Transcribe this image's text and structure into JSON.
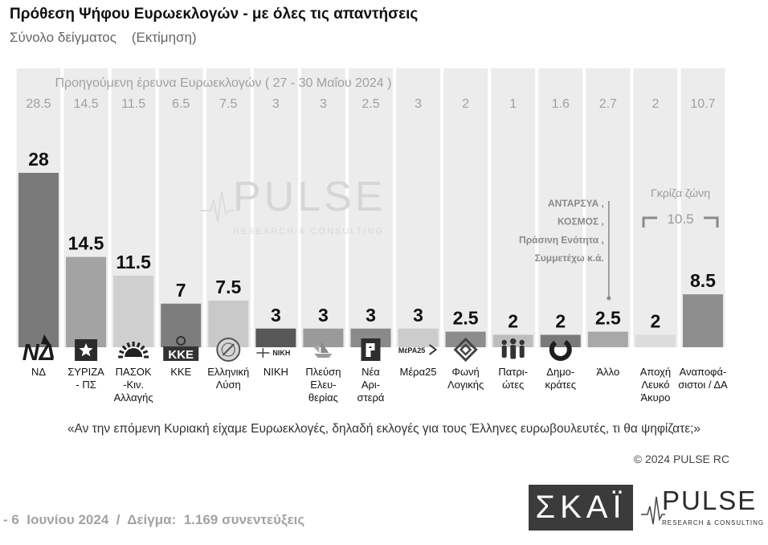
{
  "chart_data": {
    "type": "bar",
    "title": "Πρόθεση Ψήφου Ευρωεκλογών - με όλες τις απαντήσεις",
    "subtitle": "Σύνολο δείγματος    (Εκτίμηση)",
    "categories": [
      "ΝΔ",
      "ΣΥΡΙΖΑ\n- ΠΣ",
      "ΠΑΣΟΚ\n-Κιν.\nΑλλαγής",
      "ΚΚΕ",
      "Ελληνική\nΛύση",
      "ΝΙΚΗ",
      "Πλεύση\nΕλευ-\nθερίας",
      "Νέα\nΑρι-\nστερά",
      "Μέρα25",
      "Φωνή\nΛογικής",
      "Πατρι-\nώτες",
      "Δημο-\nκράτες",
      "Άλλο",
      "Αποχή\nΛευκό\nΆκυρο",
      "Αναποφά-\nσιστοι / ΔΑ"
    ],
    "values": [
      28,
      14.5,
      11.5,
      7,
      7.5,
      3,
      3,
      3,
      3,
      2.5,
      2,
      2,
      2.5,
      2,
      8.5
    ],
    "previous_label": "Προηγούμενη έρευνα Ευρωεκλογών ( 27 - 30 Μαΐου 2024 )",
    "previous_values": [
      28.5,
      14.5,
      11.5,
      6.5,
      7.5,
      3,
      3,
      2.5,
      3,
      2,
      1,
      1.6,
      2.7,
      2,
      10.7
    ],
    "question": "«Αν την επόμενη Κυριακή είχαμε Ευρωεκλογές, δηλαδή εκλογές για τους Έλληνες ευρωβουλευτές, τι θα ψηφίζατε;»",
    "grey_zone": {
      "label": "Γκρίζα ζώνη",
      "value": 10.5
    },
    "annotation": {
      "lines": [
        "ΑΝΤΑΡΣΥΑ ,",
        "ΚΟΣΜΟΣ ,",
        "Πράσινη Ενότητα ,",
        "Συμμετέχω  κ.ά."
      ]
    },
    "logos": [
      {
        "icon": "nd-logo",
        "text": "ΝΔ"
      },
      {
        "icon": "syriza-logo"
      },
      {
        "icon": "pasok-logo"
      },
      {
        "icon": "kke-logo",
        "text": "ΚΚΕ"
      },
      {
        "icon": "elliniki-lysi-logo"
      },
      {
        "icon": "niki-logo",
        "text": "ΝΙΚΗ"
      },
      {
        "icon": "plefsi-eleftherias-logo"
      },
      {
        "icon": "nea-aristera-logo"
      },
      {
        "icon": "mera25-logo",
        "text": "ΜέΡΑ25"
      },
      {
        "icon": "foni-logikis-logo"
      },
      {
        "icon": "patriotes-logo"
      },
      {
        "icon": "dimokrates-logo"
      },
      null,
      null,
      null
    ],
    "bar_colors": [
      "#7a7a7a",
      "#a3a3a3",
      "#cfcfcf",
      "#7d7d7d",
      "#c9c9c9",
      "#575757",
      "#9a9a9a",
      "#8a8a8a",
      "#cccccc",
      "#8c8c8c",
      "#bdbdbd",
      "#7a7a7a",
      "#a8a8a8",
      "#dcdcdc",
      "#8e8e8e"
    ],
    "grid": false
  },
  "footer": {
    "copyright": "© 2024 PULSE RC",
    "fieldwork": "- 6  Ιουνίου 2024  /  Δείγμα:  1.169 συνεντεύξεις"
  },
  "brand_logos": {
    "skai": "ΣΚΑΪ",
    "pulse": "PULSE",
    "pulse_tagline": "RESEARCH & CONSULTING"
  },
  "watermark": {
    "text": "PULSE",
    "tagline": "RESEARCH & CONSULTING"
  },
  "colors": {
    "background": "#ffffff",
    "band": "#ececec",
    "annotation": "#8a8a8a"
  }
}
